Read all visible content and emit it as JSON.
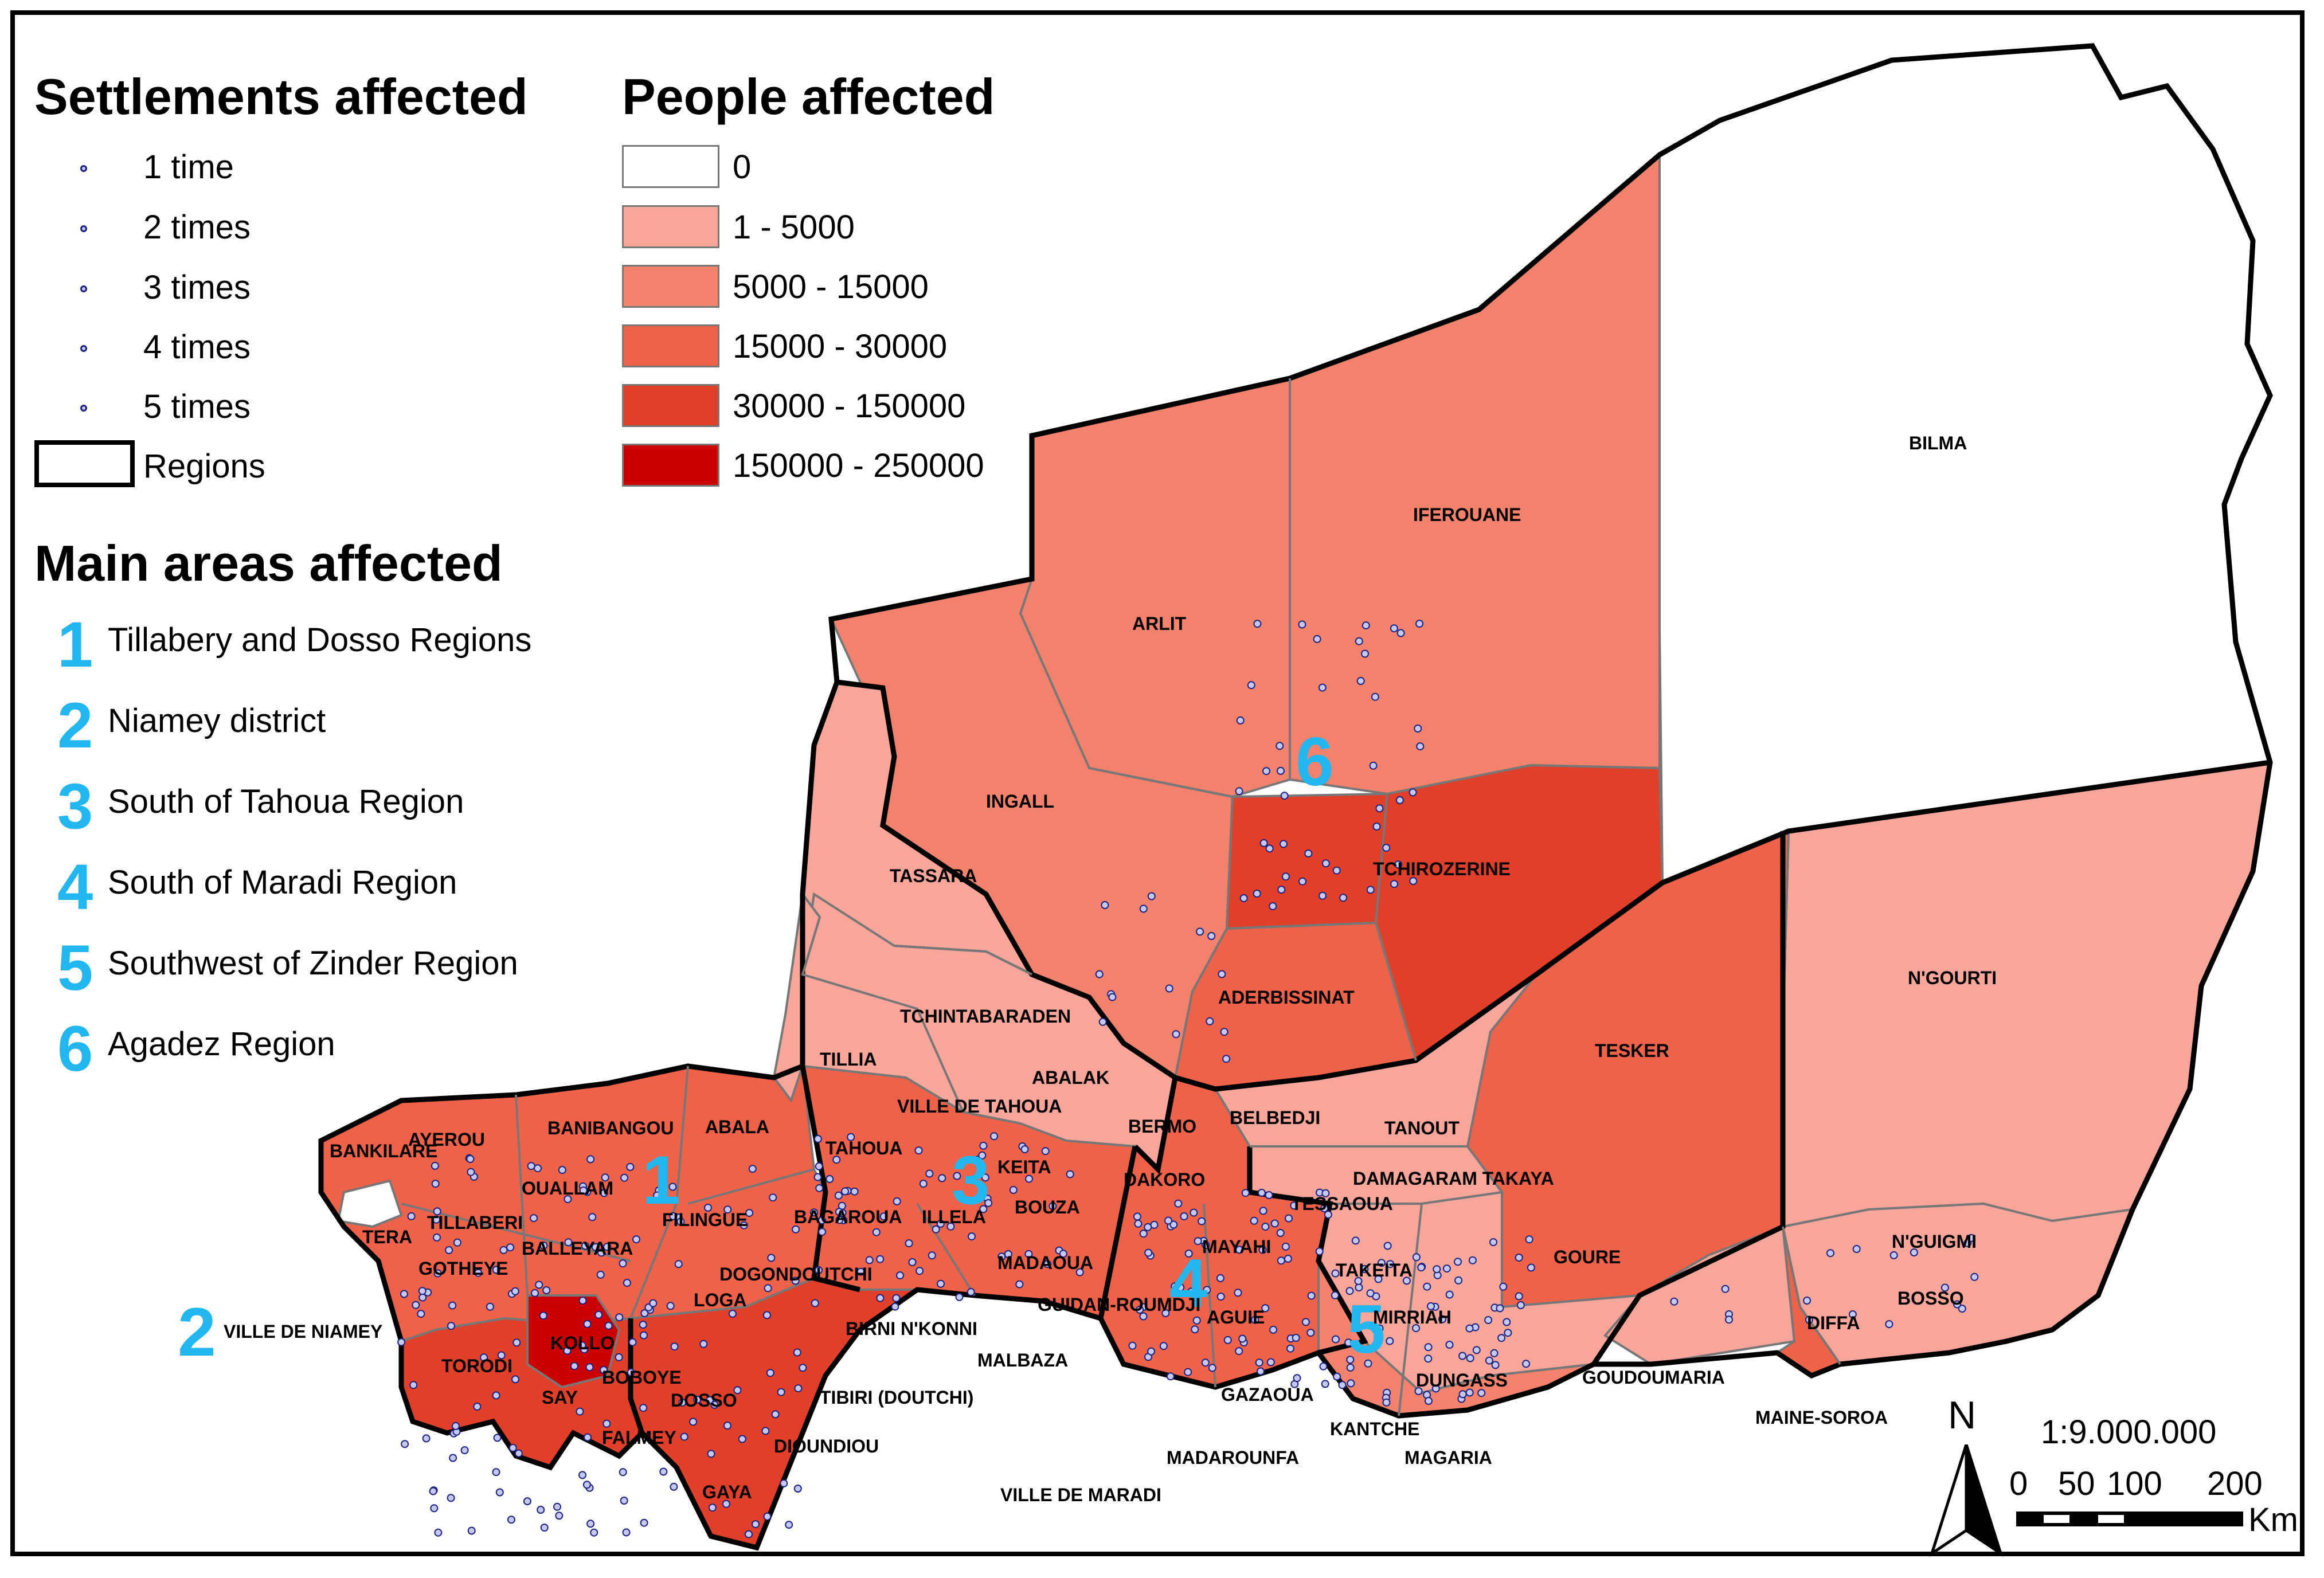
{
  "legend_settlements": {
    "title": "Settlements affected",
    "items": [
      "1 time",
      "2 times",
      "3 times",
      "4 times",
      "5 times"
    ],
    "regions_label": "Regions"
  },
  "legend_people": {
    "title": "People affected",
    "classes": [
      {
        "label": "0",
        "color": "#ffffff"
      },
      {
        "label": "1 - 5000",
        "color": "#f8a59a"
      },
      {
        "label": "5000 - 15000",
        "color": "#f2826c"
      },
      {
        "label": "15000 - 30000",
        "color": "#ed6248"
      },
      {
        "label": "30000 - 150000",
        "color": "#e0402a"
      },
      {
        "label": "150000 - 250000",
        "color": "#cc0000"
      }
    ]
  },
  "main_areas": {
    "title": "Main areas affected",
    "items": [
      {
        "num": "1",
        "label": "Tillabery and Dosso Regions"
      },
      {
        "num": "2",
        "label": "Niamey district"
      },
      {
        "num": "3",
        "label": "South of Tahoua Region"
      },
      {
        "num": "4",
        "label": "South of Maradi Region"
      },
      {
        "num": "5",
        "label": "Southwest of Zinder Region"
      },
      {
        "num": "6",
        "label": "Agadez Region"
      }
    ]
  },
  "scale": {
    "north": "N",
    "ratio": "1:9.000.000",
    "ticks": [
      "0",
      "50",
      "100",
      "200"
    ],
    "unit": "Km"
  },
  "map_numbers": [
    "1",
    "2",
    "3",
    "4",
    "5",
    "6"
  ],
  "district_labels": [
    "BILMA",
    "IFEROUANE",
    "ARLIT",
    "INGALL",
    "TCHIROZERINE",
    "TASSARA",
    "ADERBISSINAT",
    "TCHINTABARADEN",
    "N'GOURTI",
    "TESKER",
    "TILLIA",
    "ABALAK",
    "VILLE DE TAHOUA",
    "BELBEDJI",
    "TANOUT",
    "BERMO",
    "AYEROU",
    "BANIBANGOU",
    "ABALA",
    "TAHOUA",
    "KEITA",
    "BANKILARE",
    "OUALLAM",
    "DAKORO",
    "DAMAGARAM TAKAYA",
    "TERA",
    "TILLABERI",
    "FILINGUE",
    "BAGAROUA",
    "ILLELA",
    "BOUZA",
    "TESSAOUA",
    "N'GUIGMI",
    "MAYAHI",
    "GOURE",
    "BALLEYARA",
    "GOTHEYE",
    "DOGONDOUTCHI",
    "MADAOUA",
    "TAKEITA",
    "BOSSO",
    "LOGA",
    "GUIDAN-ROUMDJI",
    "MIRRIAH",
    "AGUIE",
    "DIFFA",
    "VILLE DE NIAMEY",
    "KOLLO",
    "BIRNI N'KONNI",
    "TORODI",
    "MALBAZA",
    "GOUDOUMARIA",
    "DUNGASS",
    "BOBOYE",
    "SAY",
    "GAZAOUA",
    "TIBIRI (DOUTCHI)",
    "DOSSO",
    "MAINE-SOROA",
    "KANTCHE",
    "FALMEY",
    "DIOUNDIOU",
    "MADAROUNFA",
    "MAGARIA",
    "GAYA",
    "VILLE DE MARADI"
  ]
}
